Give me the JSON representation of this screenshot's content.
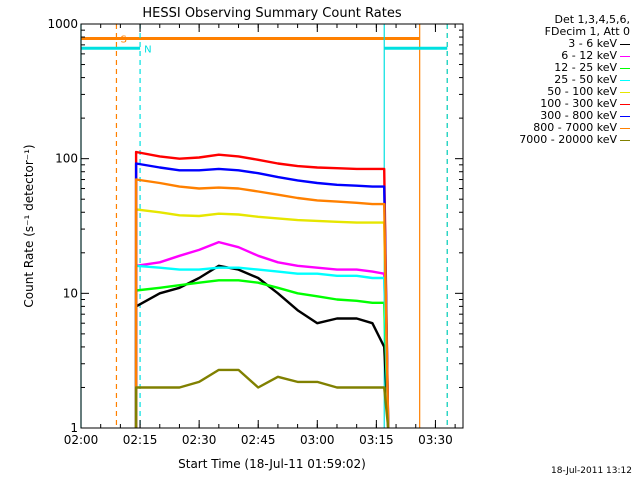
{
  "chart_data": {
    "type": "line",
    "title": "HESSI Observing Summary Count Rates",
    "xlabel": "Start Time (18-Jul-11 01:59:02)",
    "ylabel": "Count Rate (s⁻¹ detector⁻¹)",
    "y_scale": "log",
    "ylim": [
      1,
      1000
    ],
    "xlim": [
      "02:00",
      "03:37"
    ],
    "x_ticks": [
      "02:00",
      "02:15",
      "02:30",
      "02:45",
      "03:00",
      "03:15",
      "03:30"
    ],
    "y_ticks": [
      "1",
      "10",
      "100",
      "1000"
    ],
    "grid": false,
    "legend_placement": "right",
    "data_window": [
      "02:14",
      "03:18"
    ],
    "flag_annotations": [
      {
        "label": "S",
        "color": "#ff8000",
        "times": [
          "02:09",
          "03:26",
          "03:33"
        ],
        "level": 780
      },
      {
        "label": "N",
        "color": "#00e0e0",
        "times": [
          "02:00",
          "02:15",
          "03:17",
          "03:33"
        ],
        "level": 660
      }
    ],
    "series": [
      {
        "name": "3 - 6 keV",
        "color": "#000000",
        "x": [
          "02:14",
          "02:20",
          "02:25",
          "02:30",
          "02:35",
          "02:40",
          "02:45",
          "02:50",
          "02:55",
          "03:00",
          "03:05",
          "03:10",
          "03:14",
          "03:17"
        ],
        "values": [
          8,
          10,
          11,
          13,
          16,
          15,
          13,
          10,
          7.5,
          6,
          6.5,
          6.5,
          6,
          4
        ]
      },
      {
        "name": "6 - 12 keV",
        "color": "#ff00ff",
        "x": [
          "02:14",
          "02:20",
          "02:25",
          "02:30",
          "02:35",
          "02:40",
          "02:45",
          "02:50",
          "02:55",
          "03:00",
          "03:05",
          "03:10",
          "03:14",
          "03:17"
        ],
        "values": [
          16,
          17,
          19,
          21,
          24,
          22,
          19,
          17,
          16,
          15.5,
          15,
          15,
          14.5,
          14
        ]
      },
      {
        "name": "12 - 25 keV",
        "color": "#00ff00",
        "x": [
          "02:14",
          "02:20",
          "02:25",
          "02:30",
          "02:35",
          "02:40",
          "02:45",
          "02:50",
          "02:55",
          "03:00",
          "03:05",
          "03:10",
          "03:14",
          "03:17"
        ],
        "values": [
          10.5,
          11,
          11.5,
          12,
          12.5,
          12.5,
          12,
          11,
          10,
          9.5,
          9,
          8.8,
          8.5,
          8.5
        ]
      },
      {
        "name": "25 - 50 keV",
        "color": "#00ffff",
        "x": [
          "02:14",
          "02:20",
          "02:25",
          "02:30",
          "02:35",
          "02:40",
          "02:45",
          "02:50",
          "02:55",
          "03:00",
          "03:05",
          "03:10",
          "03:14",
          "03:17"
        ],
        "values": [
          16,
          15.5,
          15,
          15,
          15.5,
          15.5,
          15,
          14.5,
          14,
          14,
          13.5,
          13.5,
          13,
          13
        ]
      },
      {
        "name": "50 - 100 keV",
        "color": "#e6e600",
        "x": [
          "02:14",
          "02:20",
          "02:25",
          "02:30",
          "02:35",
          "02:40",
          "02:45",
          "02:50",
          "02:55",
          "03:00",
          "03:05",
          "03:10",
          "03:14",
          "03:17"
        ],
        "values": [
          42,
          40,
          38,
          37.5,
          39,
          38.5,
          37,
          36,
          35,
          34.5,
          34,
          33.5,
          33.5,
          33.5
        ]
      },
      {
        "name": "100 - 300 keV",
        "color": "#ff0000",
        "x": [
          "02:14",
          "02:20",
          "02:25",
          "02:30",
          "02:35",
          "02:40",
          "02:45",
          "02:50",
          "02:55",
          "03:00",
          "03:05",
          "03:10",
          "03:14",
          "03:17"
        ],
        "values": [
          112,
          104,
          100,
          102,
          107,
          104,
          98,
          92,
          88,
          86,
          85,
          84,
          84,
          84
        ]
      },
      {
        "name": "300 - 800 keV",
        "color": "#0000ff",
        "x": [
          "02:14",
          "02:20",
          "02:25",
          "02:30",
          "02:35",
          "02:40",
          "02:45",
          "02:50",
          "02:55",
          "03:00",
          "03:05",
          "03:10",
          "03:14",
          "03:17"
        ],
        "values": [
          92,
          86,
          82,
          82,
          84,
          82,
          78,
          73,
          69,
          66,
          64,
          63,
          62,
          62
        ]
      },
      {
        "name": "800 - 7000 keV",
        "color": "#ff8000",
        "x": [
          "02:14",
          "02:20",
          "02:25",
          "02:30",
          "02:35",
          "02:40",
          "02:45",
          "02:50",
          "02:55",
          "03:00",
          "03:05",
          "03:10",
          "03:14",
          "03:17"
        ],
        "values": [
          70,
          66,
          62,
          60,
          61,
          60,
          57,
          54,
          51,
          49,
          48,
          47,
          46,
          46
        ]
      },
      {
        "name": "7000 - 20000 keV",
        "color": "#808000",
        "x": [
          "02:14",
          "02:20",
          "02:25",
          "02:30",
          "02:35",
          "02:40",
          "02:45",
          "02:50",
          "02:55",
          "03:00",
          "03:05",
          "03:10",
          "03:14",
          "03:17"
        ],
        "values": [
          2,
          2,
          2,
          2.2,
          2.7,
          2.7,
          2,
          2.4,
          2.2,
          2.2,
          2,
          2,
          2,
          2
        ]
      }
    ]
  },
  "legend": {
    "header_1": "Det 1,3,4,5,6,",
    "header_2": "FDecim 1, Att 0"
  },
  "footer": {
    "date": "18-Jul-2011 13:12"
  }
}
